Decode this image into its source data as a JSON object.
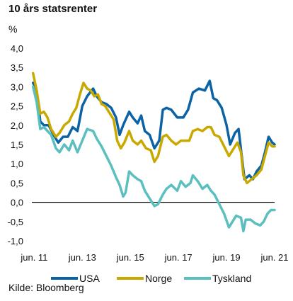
{
  "chart_data": {
    "type": "line",
    "title": "10 års statsrenter",
    "ylabel": "%",
    "ylim": [
      -1.0,
      4.0
    ],
    "y_ticks": [
      "4,0",
      "3,5",
      "3,0",
      "2,5",
      "2,0",
      "1,5",
      "1,0",
      "0,5",
      "0,0",
      "-0,5",
      "-1,0"
    ],
    "x_ticks": [
      "jun. 11",
      "jun. 13",
      "jun. 15",
      "jun. 17",
      "jun. 19",
      "jun. 21"
    ],
    "xlim": [
      2011.4,
      2021.5
    ],
    "source": "Kilde: Bloomberg",
    "legend_position": "bottom",
    "grid": false,
    "series": [
      {
        "name": "USA",
        "color": "#0b62a4",
        "points": [
          [
            2011.45,
            3.1
          ],
          [
            2011.6,
            2.9
          ],
          [
            2011.75,
            2.1
          ],
          [
            2011.9,
            2.0
          ],
          [
            2012.1,
            2.0
          ],
          [
            2012.3,
            1.75
          ],
          [
            2012.5,
            1.55
          ],
          [
            2012.7,
            1.7
          ],
          [
            2012.9,
            1.7
          ],
          [
            2013.1,
            1.95
          ],
          [
            2013.3,
            1.85
          ],
          [
            2013.5,
            2.5
          ],
          [
            2013.7,
            2.75
          ],
          [
            2013.95,
            2.95
          ],
          [
            2014.1,
            2.75
          ],
          [
            2014.3,
            2.6
          ],
          [
            2014.5,
            2.55
          ],
          [
            2014.7,
            2.45
          ],
          [
            2014.9,
            2.2
          ],
          [
            2015.05,
            1.75
          ],
          [
            2015.2,
            2.0
          ],
          [
            2015.45,
            2.35
          ],
          [
            2015.6,
            2.2
          ],
          [
            2015.8,
            2.05
          ],
          [
            2015.95,
            2.25
          ],
          [
            2016.1,
            1.85
          ],
          [
            2016.3,
            1.75
          ],
          [
            2016.5,
            1.4
          ],
          [
            2016.7,
            1.6
          ],
          [
            2016.85,
            2.4
          ],
          [
            2017.0,
            2.45
          ],
          [
            2017.2,
            2.4
          ],
          [
            2017.45,
            2.2
          ],
          [
            2017.7,
            2.2
          ],
          [
            2017.9,
            2.4
          ],
          [
            2018.1,
            2.85
          ],
          [
            2018.35,
            2.95
          ],
          [
            2018.6,
            2.9
          ],
          [
            2018.8,
            3.15
          ],
          [
            2018.95,
            2.7
          ],
          [
            2019.1,
            2.65
          ],
          [
            2019.3,
            2.45
          ],
          [
            2019.5,
            2.0
          ],
          [
            2019.65,
            1.5
          ],
          [
            2019.85,
            1.8
          ],
          [
            2020.0,
            1.9
          ],
          [
            2020.15,
            1.1
          ],
          [
            2020.25,
            0.6
          ],
          [
            2020.45,
            0.7
          ],
          [
            2020.6,
            0.6
          ],
          [
            2020.75,
            0.8
          ],
          [
            2020.95,
            0.95
          ],
          [
            2021.1,
            1.3
          ],
          [
            2021.25,
            1.7
          ],
          [
            2021.4,
            1.55
          ],
          [
            2021.5,
            1.5
          ]
        ]
      },
      {
        "name": "Norge",
        "color": "#c9a900",
        "points": [
          [
            2011.45,
            3.35
          ],
          [
            2011.6,
            2.9
          ],
          [
            2011.75,
            2.3
          ],
          [
            2011.9,
            2.35
          ],
          [
            2012.05,
            2.2
          ],
          [
            2012.2,
            1.9
          ],
          [
            2012.4,
            1.7
          ],
          [
            2012.55,
            1.8
          ],
          [
            2012.75,
            2.0
          ],
          [
            2012.95,
            2.1
          ],
          [
            2013.1,
            2.3
          ],
          [
            2013.25,
            2.45
          ],
          [
            2013.4,
            2.8
          ],
          [
            2013.55,
            3.1
          ],
          [
            2013.7,
            2.95
          ],
          [
            2013.85,
            2.9
          ],
          [
            2014.0,
            2.75
          ],
          [
            2014.15,
            2.8
          ],
          [
            2014.3,
            2.55
          ],
          [
            2014.45,
            2.5
          ],
          [
            2014.6,
            2.35
          ],
          [
            2014.8,
            2.15
          ],
          [
            2014.95,
            1.6
          ],
          [
            2015.1,
            1.4
          ],
          [
            2015.25,
            1.55
          ],
          [
            2015.45,
            1.85
          ],
          [
            2015.6,
            1.6
          ],
          [
            2015.8,
            1.5
          ],
          [
            2015.95,
            1.6
          ],
          [
            2016.15,
            1.4
          ],
          [
            2016.35,
            1.35
          ],
          [
            2016.5,
            1.05
          ],
          [
            2016.65,
            1.2
          ],
          [
            2016.85,
            1.7
          ],
          [
            2017.0,
            1.75
          ],
          [
            2017.2,
            1.6
          ],
          [
            2017.4,
            1.5
          ],
          [
            2017.6,
            1.6
          ],
          [
            2017.8,
            1.6
          ],
          [
            2017.95,
            1.6
          ],
          [
            2018.1,
            1.85
          ],
          [
            2018.3,
            1.9
          ],
          [
            2018.5,
            1.85
          ],
          [
            2018.7,
            1.95
          ],
          [
            2018.85,
            1.95
          ],
          [
            2019.0,
            1.75
          ],
          [
            2019.2,
            1.7
          ],
          [
            2019.4,
            1.45
          ],
          [
            2019.6,
            1.2
          ],
          [
            2019.75,
            1.35
          ],
          [
            2019.95,
            1.55
          ],
          [
            2020.1,
            1.3
          ],
          [
            2020.2,
            0.7
          ],
          [
            2020.35,
            0.5
          ],
          [
            2020.55,
            0.6
          ],
          [
            2020.75,
            0.7
          ],
          [
            2020.95,
            0.85
          ],
          [
            2021.1,
            1.2
          ],
          [
            2021.25,
            1.55
          ],
          [
            2021.4,
            1.45
          ],
          [
            2021.5,
            1.45
          ]
        ]
      },
      {
        "name": "Tyskland",
        "color": "#5cbfbf",
        "points": [
          [
            2011.45,
            3.0
          ],
          [
            2011.6,
            2.6
          ],
          [
            2011.75,
            1.9
          ],
          [
            2011.9,
            1.95
          ],
          [
            2012.05,
            1.85
          ],
          [
            2012.2,
            1.75
          ],
          [
            2012.4,
            1.4
          ],
          [
            2012.55,
            1.3
          ],
          [
            2012.75,
            1.5
          ],
          [
            2012.95,
            1.35
          ],
          [
            2013.1,
            1.6
          ],
          [
            2013.3,
            1.3
          ],
          [
            2013.5,
            1.6
          ],
          [
            2013.7,
            1.9
          ],
          [
            2013.95,
            1.85
          ],
          [
            2014.1,
            1.65
          ],
          [
            2014.3,
            1.45
          ],
          [
            2014.5,
            1.2
          ],
          [
            2014.7,
            0.95
          ],
          [
            2014.9,
            0.65
          ],
          [
            2015.05,
            0.45
          ],
          [
            2015.2,
            0.15
          ],
          [
            2015.3,
            0.25
          ],
          [
            2015.45,
            0.8
          ],
          [
            2015.6,
            0.7
          ],
          [
            2015.8,
            0.6
          ],
          [
            2015.95,
            0.55
          ],
          [
            2016.1,
            0.3
          ],
          [
            2016.3,
            0.1
          ],
          [
            2016.5,
            -0.1
          ],
          [
            2016.65,
            -0.05
          ],
          [
            2016.85,
            0.2
          ],
          [
            2017.0,
            0.35
          ],
          [
            2017.2,
            0.45
          ],
          [
            2017.45,
            0.3
          ],
          [
            2017.6,
            0.55
          ],
          [
            2017.8,
            0.4
          ],
          [
            2018.0,
            0.5
          ],
          [
            2018.1,
            0.7
          ],
          [
            2018.3,
            0.55
          ],
          [
            2018.5,
            0.35
          ],
          [
            2018.7,
            0.45
          ],
          [
            2018.85,
            0.3
          ],
          [
            2019.0,
            0.2
          ],
          [
            2019.2,
            -0.05
          ],
          [
            2019.4,
            -0.3
          ],
          [
            2019.6,
            -0.65
          ],
          [
            2019.75,
            -0.5
          ],
          [
            2019.9,
            -0.35
          ],
          [
            2020.1,
            -0.4
          ],
          [
            2020.2,
            -0.75
          ],
          [
            2020.3,
            -0.45
          ],
          [
            2020.5,
            -0.45
          ],
          [
            2020.7,
            -0.55
          ],
          [
            2020.9,
            -0.6
          ],
          [
            2021.05,
            -0.5
          ],
          [
            2021.2,
            -0.3
          ],
          [
            2021.35,
            -0.2
          ],
          [
            2021.5,
            -0.2
          ]
        ]
      }
    ]
  }
}
